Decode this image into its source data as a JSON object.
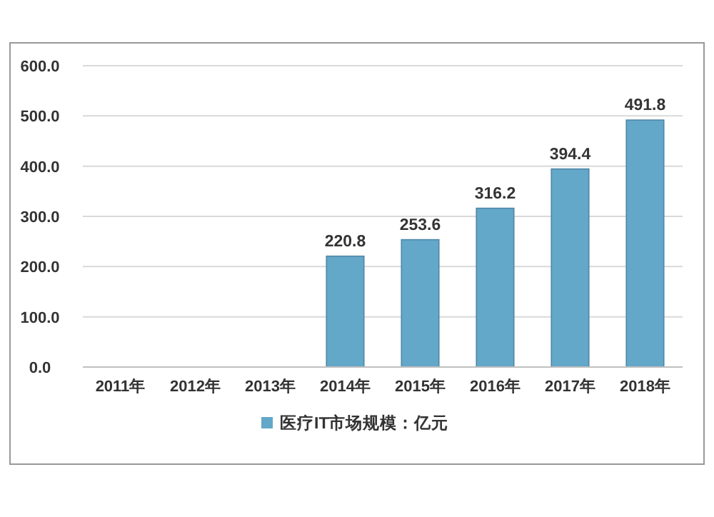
{
  "chart_data": {
    "type": "bar",
    "categories": [
      "2011年",
      "2012年",
      "2013年",
      "2014年",
      "2015年",
      "2016年",
      "2017年",
      "2018年"
    ],
    "series": [
      {
        "name": "医疗IT市场规模：亿元",
        "color": "#63a7c9",
        "values": [
          null,
          null,
          null,
          220.8,
          253.6,
          316.2,
          394.4,
          491.8
        ]
      }
    ],
    "ylim": [
      0,
      600
    ],
    "yticks": [
      {
        "value": 0,
        "label": "0.0"
      },
      {
        "value": 100,
        "label": "100.0"
      },
      {
        "value": 200,
        "label": "200.0"
      },
      {
        "value": 300,
        "label": "300.0"
      },
      {
        "value": 400,
        "label": "400.0"
      },
      {
        "value": 500,
        "label": "500.0"
      },
      {
        "value": 600,
        "label": "600.0"
      }
    ],
    "grid": "y",
    "legend": "bottom",
    "data_labels": true
  }
}
